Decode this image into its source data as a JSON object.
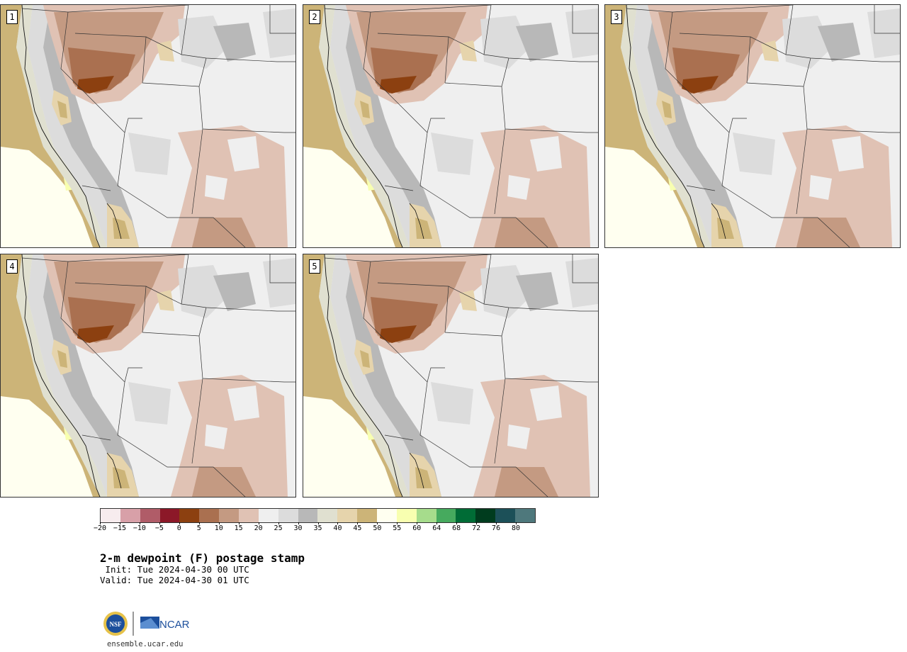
{
  "panels": [
    {
      "label": "1"
    },
    {
      "label": "2"
    },
    {
      "label": "3"
    },
    {
      "label": "4"
    },
    {
      "label": "5"
    }
  ],
  "colorbar": {
    "colors": [
      "#f7ecee",
      "#d8a0a8",
      "#b05c68",
      "#8c1828",
      "#8c4010",
      "#aa7050",
      "#c49a82",
      "#e0c2b4",
      "#efefef",
      "#dcdcdc",
      "#b8b8b8",
      "#e0e0d0",
      "#e6d4ac",
      "#ccb478",
      "#fffff0",
      "#f8ffb0",
      "#a6dc8c",
      "#46aa5e",
      "#006c36",
      "#003c1e",
      "#1c5058",
      "#4e787c"
    ],
    "ticks": [
      "−20",
      "−15",
      "−10",
      "−5",
      "0",
      "5",
      "10",
      "15",
      "20",
      "25",
      "30",
      "35",
      "40",
      "45",
      "50",
      "55",
      "60",
      "64",
      "68",
      "72",
      "76",
      "80"
    ]
  },
  "title": "2-m dewpoint (F) postage stamp",
  "init": " Init: Tue 2024-04-30 00 UTC",
  "valid": "Valid: Tue 2024-04-30 01 UTC",
  "logos": {
    "nsf": "NSF",
    "ncar": "NCAR"
  },
  "site": "ensemble.ucar.edu"
}
